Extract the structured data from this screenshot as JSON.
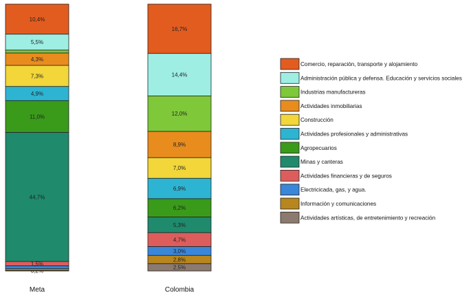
{
  "chart_data": {
    "type": "bar",
    "stacked": true,
    "normalized": true,
    "categories": [
      "Meta",
      "Colombia"
    ],
    "series": [
      {
        "name": "Comercio, reparación, transporte y alojamiento",
        "color": "#e35c1f",
        "values": [
          10.4,
          16.7
        ],
        "labels": [
          "10,4%",
          "16,7%"
        ]
      },
      {
        "name": "Administración pública y defensa. Educación y servicios sociales",
        "color": "#9eeee4",
        "values": [
          5.5,
          14.4
        ],
        "labels": [
          "5,5%",
          "14,4%"
        ]
      },
      {
        "name": "Industrias manufactureras",
        "color": "#7ec83a",
        "values": [
          1.0,
          12.0
        ],
        "labels": [
          "",
          "12,0%"
        ]
      },
      {
        "name": "Actividades inmobiliarias",
        "color": "#e88c1e",
        "values": [
          4.3,
          8.9
        ],
        "labels": [
          "4,3%",
          "8,9%"
        ]
      },
      {
        "name": "Construcción",
        "color": "#f2d63a",
        "values": [
          7.3,
          7.0
        ],
        "labels": [
          "7,3%",
          "7,0%"
        ]
      },
      {
        "name": "Actividades profesionales y  administrativas",
        "color": "#2eb4d3",
        "values": [
          4.9,
          6.9
        ],
        "labels": [
          "4,9%",
          "6,9%"
        ]
      },
      {
        "name": "Agropecuarios",
        "color": "#3a9b1a",
        "values": [
          11.0,
          6.2
        ],
        "labels": [
          "11,0%",
          "6,2%"
        ]
      },
      {
        "name": "Minas y canteras",
        "color": "#1f8a6c",
        "values": [
          44.7,
          5.3
        ],
        "labels": [
          "44,7%",
          "5,3%"
        ]
      },
      {
        "name": "Actividades financieras y de seguros",
        "color": "#dd5d5d",
        "values": [
          1.5,
          4.7
        ],
        "labels": [
          "1,5%",
          "4,7%"
        ]
      },
      {
        "name": "Electricicada, gas, y agua.",
        "color": "#3a86d9",
        "values": [
          1.0,
          3.0
        ],
        "labels": [
          "",
          "3,0%"
        ]
      },
      {
        "name": "Información y comunicaciones",
        "color": "#b8861e",
        "values": [
          0.6,
          2.8
        ],
        "labels": [
          "",
          "2,8%"
        ]
      },
      {
        "name": "Actividades artísticas, de entretenimiento y recreación",
        "color": "#8c7a6e",
        "values": [
          0.2,
          2.5
        ],
        "labels": [
          "0,2%",
          "2,5%"
        ]
      }
    ],
    "legend_position": "right",
    "grid": false
  }
}
